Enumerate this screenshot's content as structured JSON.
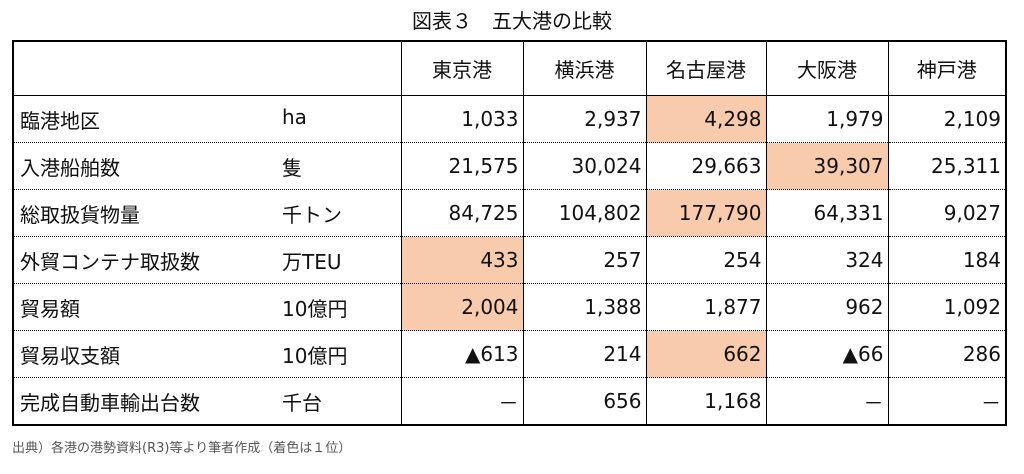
{
  "title": "図表３　五大港の比較",
  "table": {
    "header": [
      "東京港",
      "横浜港",
      "名古屋港",
      "大阪港",
      "神戸港"
    ],
    "highlight_color": "#f8cbad",
    "rows": [
      {
        "label": "臨港地区",
        "unit": "ha",
        "cells": [
          "1,033",
          "2,937",
          "4,298",
          "1,979",
          "2,109"
        ],
        "highlight": 2
      },
      {
        "label": "入港船舶数",
        "unit": "隻",
        "cells": [
          "21,575",
          "30,024",
          "29,663",
          "39,307",
          "25,311"
        ],
        "highlight": 3
      },
      {
        "label": "総取扱貨物量",
        "unit": "千トン",
        "cells": [
          "84,725",
          "104,802",
          "177,790",
          "64,331",
          "9,027"
        ],
        "highlight": 2
      },
      {
        "label": "外貿コンテナ取扱数",
        "unit": "万TEU",
        "cells": [
          "433",
          "257",
          "254",
          "324",
          "184"
        ],
        "highlight": 0
      },
      {
        "label": "貿易額",
        "unit": "10億円",
        "cells": [
          "2,004",
          "1,388",
          "1,877",
          "962",
          "1,092"
        ],
        "highlight": 0
      },
      {
        "label": "貿易収支額",
        "unit": "10億円",
        "cells": [
          "▲613",
          "214",
          "662",
          "▲66",
          "286"
        ],
        "highlight": 2
      },
      {
        "label": "完成自動車輸出台数",
        "unit": "千台",
        "cells": [
          "－",
          "656",
          "1,168",
          "－",
          "－"
        ],
        "highlight": null
      }
    ]
  },
  "source": "出典）各港の港勢資料(R3)等より筆者作成（着色は１位）"
}
